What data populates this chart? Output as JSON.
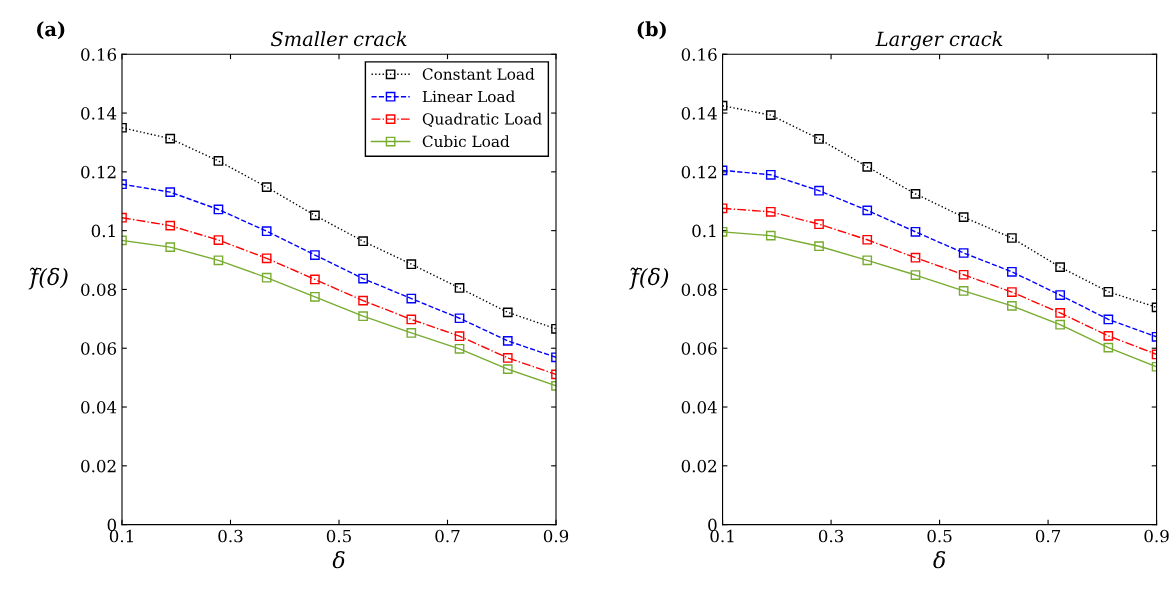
{
  "chart_data": [
    {
      "type": "line",
      "title": "Smaller crack",
      "xlabel": "δ",
      "ylabel": "f̃(δ)",
      "annotations": [
        "(a)"
      ],
      "marker": "square",
      "legend": "top right",
      "grid": false,
      "x": [
        0.1,
        0.1889,
        0.2778,
        0.3667,
        0.4556,
        0.5444,
        0.6333,
        0.7222,
        0.8111,
        0.9
      ],
      "xlim": [
        0.1,
        0.9
      ],
      "xticks": [
        0.1,
        0.3,
        0.5,
        0.7,
        0.9
      ],
      "ylim": [
        0,
        0.16
      ],
      "yticks": [
        0,
        0.02,
        0.04,
        0.06,
        0.08,
        0.1,
        0.12,
        0.14,
        0.16
      ],
      "series": [
        {
          "name": "Constant Load",
          "color": "#000000",
          "line_style": "dotted",
          "values": [
            0.135,
            0.1313,
            0.1237,
            0.1148,
            0.1052,
            0.0964,
            0.0886,
            0.0805,
            0.0722,
            0.0666
          ]
        },
        {
          "name": "Linear Load",
          "color": "#0000ff",
          "line_style": "dashed",
          "values": [
            0.1158,
            0.1131,
            0.1072,
            0.0998,
            0.0917,
            0.0837,
            0.0769,
            0.0702,
            0.0625,
            0.0569
          ]
        },
        {
          "name": "Quadratic Load",
          "color": "#ff0000",
          "line_style": "dashdot",
          "values": [
            0.1044,
            0.1017,
            0.0968,
            0.0906,
            0.0834,
            0.0762,
            0.0698,
            0.0641,
            0.0567,
            0.0511
          ]
        },
        {
          "name": "Cubic Load",
          "color": "#77ac30",
          "line_style": "solid",
          "values": [
            0.0967,
            0.0944,
            0.0899,
            0.084,
            0.0775,
            0.0709,
            0.0652,
            0.0598,
            0.0529,
            0.0472
          ]
        }
      ]
    },
    {
      "type": "line",
      "title": "Larger crack",
      "xlabel": "δ",
      "ylabel": "f̃(δ)",
      "annotations": [
        "(b)"
      ],
      "marker": "square",
      "grid": false,
      "x": [
        0.1,
        0.1889,
        0.2778,
        0.3667,
        0.4556,
        0.5444,
        0.6333,
        0.7222,
        0.8111,
        0.9
      ],
      "xlim": [
        0.1,
        0.9
      ],
      "xticks": [
        0.1,
        0.3,
        0.5,
        0.7,
        0.9
      ],
      "ylim": [
        0,
        0.16
      ],
      "yticks": [
        0,
        0.02,
        0.04,
        0.06,
        0.08,
        0.1,
        0.12,
        0.14,
        0.16
      ],
      "series": [
        {
          "color": "#000000",
          "line_style": "dotted",
          "values": [
            0.1425,
            0.1393,
            0.1312,
            0.1217,
            0.1125,
            0.1046,
            0.0975,
            0.0876,
            0.0792,
            0.0739
          ]
        },
        {
          "color": "#0000ff",
          "line_style": "dashed",
          "values": [
            0.1205,
            0.119,
            0.1136,
            0.1069,
            0.0996,
            0.0924,
            0.086,
            0.0781,
            0.0698,
            0.0639
          ]
        },
        {
          "color": "#ff0000",
          "line_style": "dashdot",
          "values": [
            0.1076,
            0.1064,
            0.1022,
            0.0969,
            0.0908,
            0.085,
            0.0791,
            0.072,
            0.0642,
            0.0579
          ]
        },
        {
          "color": "#77ac30",
          "line_style": "solid",
          "values": [
            0.0996,
            0.0983,
            0.0947,
            0.0899,
            0.0849,
            0.0795,
            0.0744,
            0.068,
            0.0602,
            0.0537
          ]
        }
      ]
    }
  ]
}
